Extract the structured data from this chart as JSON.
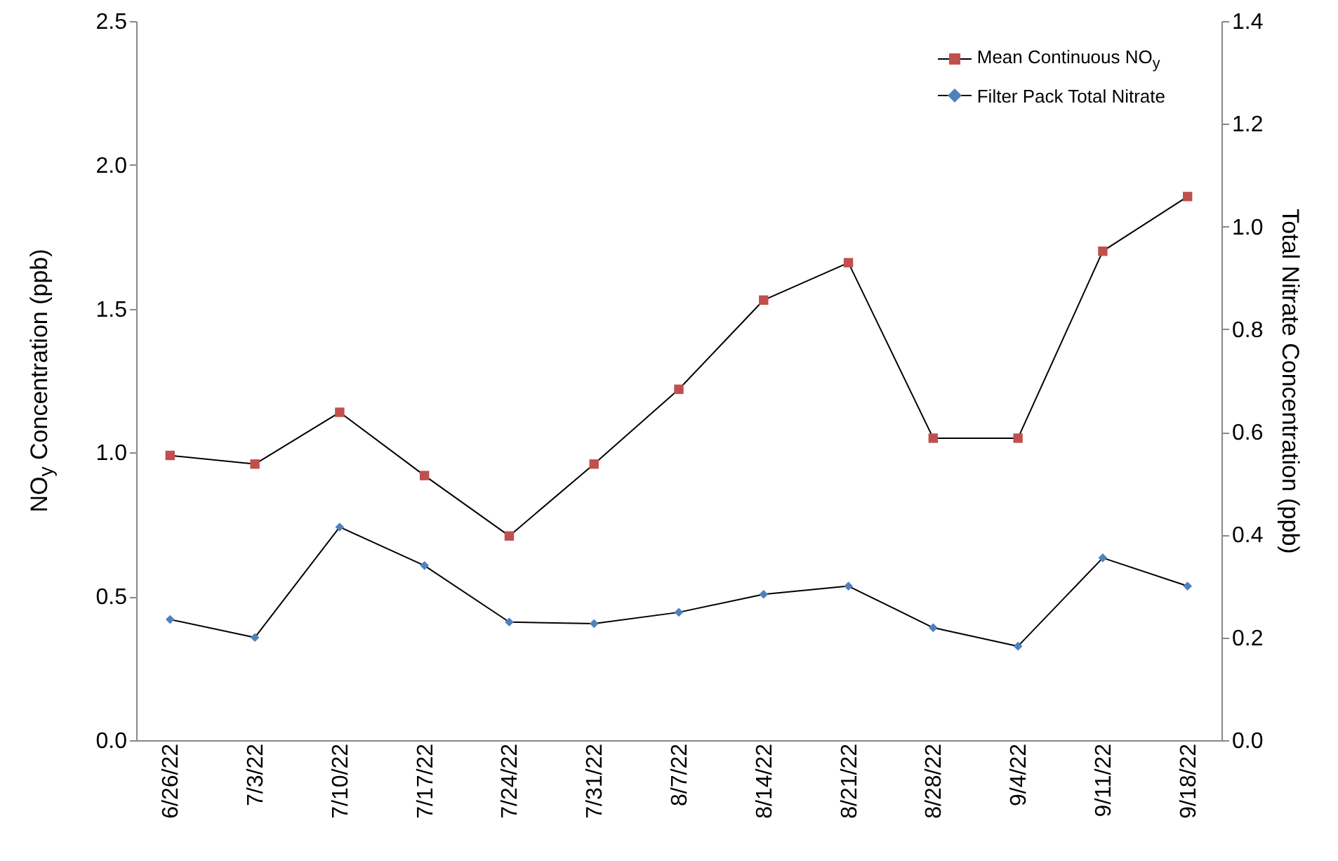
{
  "chart_data": {
    "type": "line",
    "ylabel": "NO$_{y}$ Concentration (ppb)",
    "y2label": "Total Nitrate Concentration (ppb)",
    "categories": [
      "6/26/22",
      "7/3/22",
      "7/10/22",
      "7/17/22",
      "7/24/22",
      "7/31/22",
      "8/7/22",
      "8/14/22",
      "8/21/22",
      "8/28/22",
      "9/4/22",
      "9/11/22",
      "9/18/22"
    ],
    "series": [
      {
        "name": "Mean Continuous NO$_{y}$",
        "color": "#c0504d",
        "marker": "square",
        "values": [
          0.99,
          0.96,
          1.14,
          0.92,
          0.71,
          0.96,
          1.22,
          1.53,
          1.66,
          1.05,
          1.05,
          1.7,
          1.89
        ]
      },
      {
        "name": "Filter Pack Total Nitrate",
        "color": "#4f81bd",
        "marker": "diamond",
        "axis": "y2",
        "values": [
          0.235,
          0.2,
          0.415,
          0.34,
          0.23,
          0.227,
          0.249,
          0.284,
          0.3,
          0.219,
          0.183,
          0.355,
          0.3
        ]
      }
    ],
    "ylim": [
      0,
      2.5
    ],
    "yticks": [
      {
        "value": 0,
        "label": "0.0"
      },
      {
        "value": 0.5,
        "label": "0.5"
      },
      {
        "value": 1,
        "label": "1.0"
      },
      {
        "value": 1.5,
        "label": "1.5"
      },
      {
        "value": 2,
        "label": "2.0"
      },
      {
        "value": 2.5,
        "label": "2.5"
      }
    ],
    "y2lim": [
      0,
      1.4
    ],
    "y2ticks": [
      {
        "value": 0,
        "label": "0.0"
      },
      {
        "value": 0.2,
        "label": "0.2"
      },
      {
        "value": 0.4,
        "label": "0.4"
      },
      {
        "value": 0.6,
        "label": "0.6"
      },
      {
        "value": 0.8,
        "label": "0.8"
      },
      {
        "value": 1,
        "label": "1.0"
      },
      {
        "value": 1.2,
        "label": "1.2"
      },
      {
        "value": 1.4,
        "label": "1.4"
      }
    ],
    "grid": false,
    "legend": "top right",
    "line_style": "solid"
  }
}
